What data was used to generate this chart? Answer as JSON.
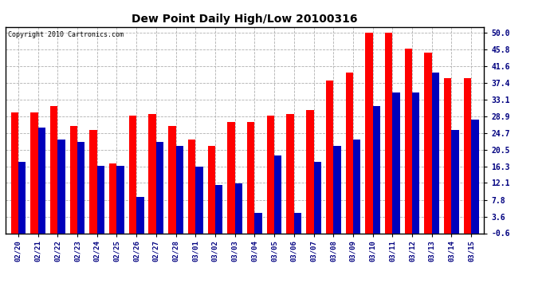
{
  "title": "Dew Point Daily High/Low 20100316",
  "copyright": "Copyright 2010 Cartronics.com",
  "dates": [
    "02/20",
    "02/21",
    "02/22",
    "02/23",
    "02/24",
    "02/25",
    "02/26",
    "02/27",
    "02/28",
    "03/01",
    "03/02",
    "03/03",
    "03/04",
    "03/05",
    "03/06",
    "03/07",
    "03/08",
    "03/09",
    "03/10",
    "03/11",
    "03/12",
    "03/13",
    "03/14",
    "03/15"
  ],
  "highs": [
    30.0,
    30.0,
    31.5,
    26.5,
    25.5,
    17.0,
    29.0,
    29.5,
    26.5,
    23.0,
    21.5,
    27.5,
    27.5,
    29.0,
    29.5,
    30.5,
    38.0,
    40.0,
    50.0,
    50.0,
    46.0,
    45.0,
    38.5,
    38.5
  ],
  "lows": [
    17.5,
    26.0,
    23.0,
    22.5,
    16.5,
    16.5,
    8.5,
    22.5,
    21.5,
    16.3,
    11.5,
    12.0,
    4.5,
    19.0,
    4.5,
    17.5,
    21.5,
    23.0,
    31.5,
    35.0,
    35.0,
    40.0,
    25.5,
    28.0
  ],
  "bar_color_high": "#ff0000",
  "bar_color_low": "#0000bb",
  "background_color": "#ffffff",
  "plot_bg_color": "#ffffff",
  "grid_color": "#b0b0b0",
  "title_color": "#000000",
  "copyright_color": "#000000",
  "ytick_vals": [
    -0.6,
    3.6,
    7.8,
    12.1,
    16.3,
    20.5,
    24.7,
    28.9,
    33.1,
    37.4,
    41.6,
    45.8,
    50.0
  ],
  "ytick_labels": [
    "-0.6",
    "3.6",
    "7.8",
    "12.1",
    "16.3",
    "20.5",
    "24.7",
    "28.9",
    "33.1",
    "37.4",
    "41.6",
    "45.8",
    "50.0"
  ],
  "ymin": -0.6,
  "ymax": 51.5,
  "bar_width": 0.38,
  "fig_width": 6.9,
  "fig_height": 3.75,
  "dpi": 100
}
